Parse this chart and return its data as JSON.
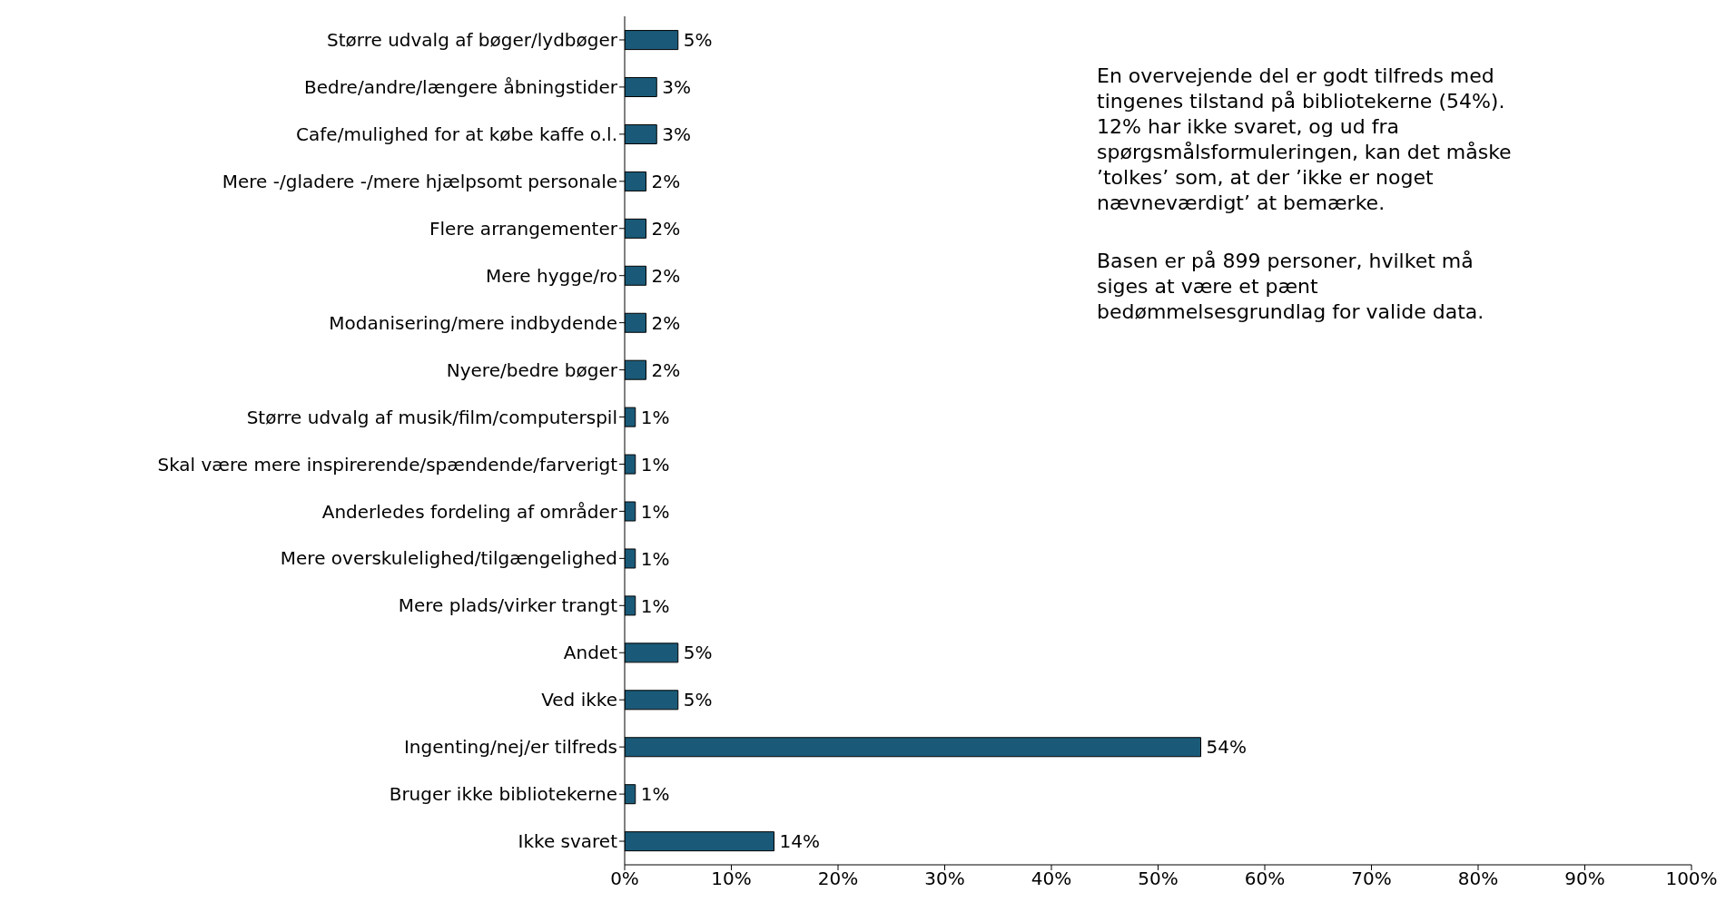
{
  "chart_data": {
    "type": "bar",
    "orientation": "horizontal",
    "categories": [
      "Større udvalg af bøger/lydbøger",
      "Bedre/andre/længere åbningstider",
      "Cafe/mulighed for at købe kaffe o.l.",
      "Mere -/gladere -/mere hjælpsomt personale",
      "Flere arrangementer",
      "Mere hygge/ro",
      "Modanisering/mere indbydende",
      "Nyere/bedre bøger",
      "Større udvalg af musik/film/computerspil",
      "Skal være mere inspirerende/spændende/farverigt",
      "Anderledes fordeling af områder",
      "Mere overskulelighed/tilgængelighed",
      "Mere plads/virker trangt",
      "Andet",
      "Ved ikke",
      "Ingenting/nej/er tilfreds",
      "Bruger ikke bibliotekerne",
      "Ikke svaret"
    ],
    "values": [
      5,
      3,
      3,
      2,
      2,
      2,
      2,
      2,
      1,
      1,
      1,
      1,
      1,
      5,
      5,
      54,
      1,
      14
    ],
    "value_labels": [
      "5%",
      "3%",
      "3%",
      "2%",
      "2%",
      "2%",
      "2%",
      "2%",
      "1%",
      "1%",
      "1%",
      "1%",
      "1%",
      "5%",
      "5%",
      "54%",
      "1%",
      "14%"
    ],
    "color": "#1a5a78",
    "xlim": [
      0,
      100
    ],
    "xticks": [
      {
        "value": 0,
        "label": "0%"
      },
      {
        "value": 10,
        "label": "10%"
      },
      {
        "value": 20,
        "label": "20%"
      },
      {
        "value": 30,
        "label": "30%"
      },
      {
        "value": 40,
        "label": "40%"
      },
      {
        "value": 50,
        "label": "50%"
      },
      {
        "value": 60,
        "label": "60%"
      },
      {
        "value": 70,
        "label": "70%"
      },
      {
        "value": 80,
        "label": "80%"
      },
      {
        "value": 90,
        "label": "90%"
      },
      {
        "value": 100,
        "label": "100%"
      }
    ],
    "grid": false,
    "legend": false,
    "annotations": [
      "En overvejende del er godt tilfreds med tingenes tilstand på bibliotekerne (54%). 12% har ikke svaret, og ud fra spørgsmålsformuleringen, kan det måske ’tolkes’ som, at der ’ikke er noget nævneværdigt’ at bemærke.",
      "Basen er på 899 personer, hvilket må siges at være et pænt bedømmelsesgrundlag for valide data."
    ]
  }
}
